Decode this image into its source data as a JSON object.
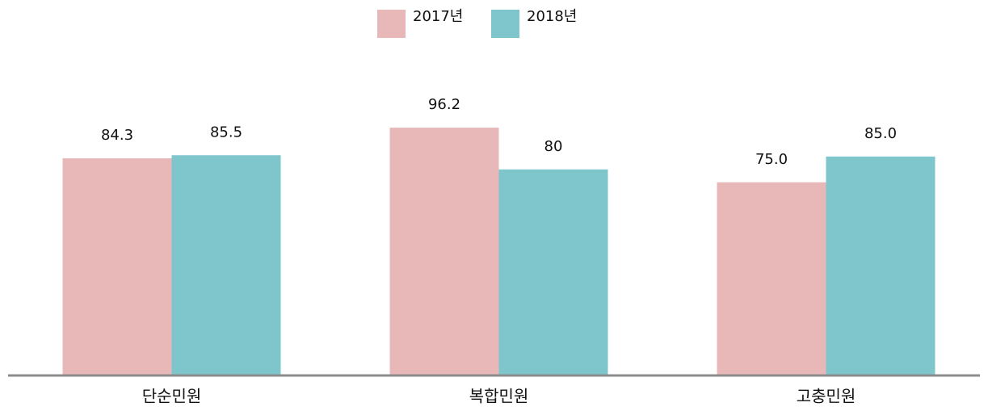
{
  "chart_data": {
    "type": "bar",
    "categories": [
      "단순민원",
      "복합민원",
      "고충민원"
    ],
    "series": [
      {
        "name": "2017년",
        "color": "#e8b7b8",
        "values": [
          84.3,
          96.2,
          75.0
        ],
        "value_labels": [
          "84.3",
          "96.2",
          "75.0"
        ]
      },
      {
        "name": "2018년",
        "color": "#7fc6cc",
        "values": [
          85.5,
          80,
          85.0
        ],
        "value_labels": [
          "85.5",
          "80",
          "85.0"
        ]
      }
    ],
    "ylim": [
      0,
      100
    ],
    "legend": "top"
  }
}
